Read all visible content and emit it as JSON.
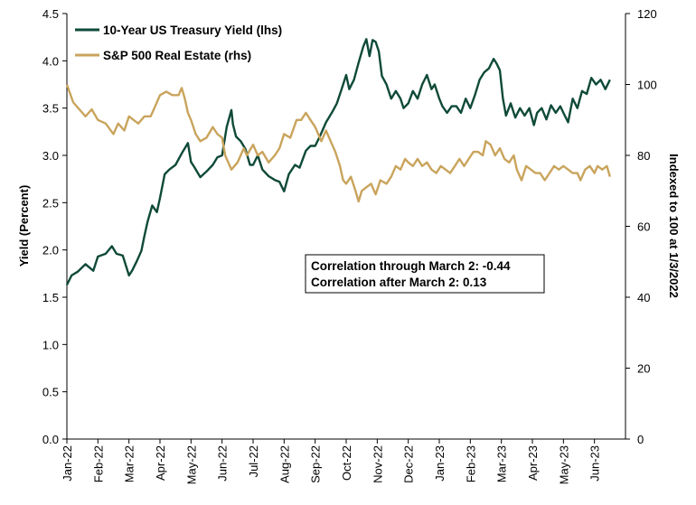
{
  "chart_data": {
    "type": "line",
    "x_tick_labels": [
      "Jan-22",
      "Feb-22",
      "Mar-22",
      "Apr-22",
      "May-22",
      "Jun-22",
      "Jul-22",
      "Aug-22",
      "Sep-22",
      "Oct-22",
      "Nov-22",
      "Dec-22",
      "Jan-23",
      "Feb-23",
      "Mar-23",
      "Apr-23",
      "May-23",
      "Jun-23"
    ],
    "y_left": {
      "label": "Yield (Percent)",
      "min": 0,
      "max": 4.5,
      "ticks": [
        "0.0",
        "0.5",
        "1.0",
        "1.5",
        "2.0",
        "2.5",
        "3.0",
        "3.5",
        "4.0",
        "4.5"
      ]
    },
    "y_right": {
      "label": "Indexed to 100 at 1/3/2022",
      "min": 0,
      "max": 120,
      "ticks": [
        "0",
        "20",
        "40",
        "60",
        "80",
        "100",
        "120"
      ]
    },
    "grid": false,
    "legend_position": "top-left",
    "series": [
      {
        "name": "10-Year US Treasury Yield (lhs)",
        "axis": "left",
        "color": "#0f4a39",
        "points": [
          [
            0,
            1.63
          ],
          [
            0.15,
            1.73
          ],
          [
            0.35,
            1.77
          ],
          [
            0.6,
            1.85
          ],
          [
            0.85,
            1.78
          ],
          [
            1.0,
            1.93
          ],
          [
            1.25,
            1.96
          ],
          [
            1.45,
            2.04
          ],
          [
            1.6,
            1.96
          ],
          [
            1.8,
            1.94
          ],
          [
            2.0,
            1.73
          ],
          [
            2.1,
            1.78
          ],
          [
            2.25,
            1.88
          ],
          [
            2.4,
            1.99
          ],
          [
            2.5,
            2.15
          ],
          [
            2.6,
            2.3
          ],
          [
            2.75,
            2.47
          ],
          [
            2.9,
            2.4
          ],
          [
            3.0,
            2.55
          ],
          [
            3.15,
            2.8
          ],
          [
            3.3,
            2.85
          ],
          [
            3.5,
            2.9
          ],
          [
            3.7,
            3.02
          ],
          [
            3.9,
            3.13
          ],
          [
            4.0,
            2.93
          ],
          [
            4.1,
            2.88
          ],
          [
            4.3,
            2.77
          ],
          [
            4.5,
            2.83
          ],
          [
            4.7,
            2.9
          ],
          [
            4.85,
            2.98
          ],
          [
            5.0,
            3.0
          ],
          [
            5.15,
            3.3
          ],
          [
            5.3,
            3.48
          ],
          [
            5.35,
            3.33
          ],
          [
            5.45,
            3.2
          ],
          [
            5.6,
            3.15
          ],
          [
            5.75,
            3.07
          ],
          [
            5.9,
            2.9
          ],
          [
            6.0,
            2.9
          ],
          [
            6.15,
            3.0
          ],
          [
            6.3,
            2.85
          ],
          [
            6.5,
            2.78
          ],
          [
            6.7,
            2.74
          ],
          [
            6.85,
            2.72
          ],
          [
            7.0,
            2.62
          ],
          [
            7.15,
            2.8
          ],
          [
            7.35,
            2.9
          ],
          [
            7.5,
            2.87
          ],
          [
            7.7,
            3.05
          ],
          [
            7.85,
            3.1
          ],
          [
            8.0,
            3.1
          ],
          [
            8.15,
            3.2
          ],
          [
            8.35,
            3.35
          ],
          [
            8.55,
            3.46
          ],
          [
            8.7,
            3.55
          ],
          [
            8.85,
            3.7
          ],
          [
            9.0,
            3.85
          ],
          [
            9.1,
            3.7
          ],
          [
            9.25,
            3.8
          ],
          [
            9.4,
            3.98
          ],
          [
            9.55,
            4.15
          ],
          [
            9.65,
            4.23
          ],
          [
            9.75,
            4.05
          ],
          [
            9.85,
            4.22
          ],
          [
            9.95,
            4.2
          ],
          [
            10.05,
            4.1
          ],
          [
            10.15,
            3.84
          ],
          [
            10.3,
            3.75
          ],
          [
            10.45,
            3.6
          ],
          [
            10.6,
            3.68
          ],
          [
            10.75,
            3.6
          ],
          [
            10.85,
            3.5
          ],
          [
            11.0,
            3.55
          ],
          [
            11.15,
            3.68
          ],
          [
            11.3,
            3.6
          ],
          [
            11.45,
            3.75
          ],
          [
            11.6,
            3.85
          ],
          [
            11.75,
            3.7
          ],
          [
            11.85,
            3.75
          ],
          [
            12.0,
            3.6
          ],
          [
            12.1,
            3.52
          ],
          [
            12.25,
            3.45
          ],
          [
            12.4,
            3.52
          ],
          [
            12.55,
            3.52
          ],
          [
            12.7,
            3.45
          ],
          [
            12.85,
            3.6
          ],
          [
            13.0,
            3.5
          ],
          [
            13.15,
            3.64
          ],
          [
            13.3,
            3.8
          ],
          [
            13.45,
            3.88
          ],
          [
            13.6,
            3.92
          ],
          [
            13.75,
            4.02
          ],
          [
            13.85,
            3.97
          ],
          [
            13.95,
            3.9
          ],
          [
            14.05,
            3.6
          ],
          [
            14.15,
            3.42
          ],
          [
            14.3,
            3.55
          ],
          [
            14.45,
            3.4
          ],
          [
            14.6,
            3.5
          ],
          [
            14.75,
            3.42
          ],
          [
            14.9,
            3.5
          ],
          [
            15.05,
            3.32
          ],
          [
            15.15,
            3.45
          ],
          [
            15.3,
            3.5
          ],
          [
            15.45,
            3.38
          ],
          [
            15.6,
            3.53
          ],
          [
            15.75,
            3.45
          ],
          [
            15.9,
            3.52
          ],
          [
            16.0,
            3.45
          ],
          [
            16.15,
            3.35
          ],
          [
            16.3,
            3.6
          ],
          [
            16.45,
            3.5
          ],
          [
            16.6,
            3.68
          ],
          [
            16.75,
            3.65
          ],
          [
            16.9,
            3.82
          ],
          [
            17.05,
            3.75
          ],
          [
            17.2,
            3.8
          ],
          [
            17.35,
            3.7
          ],
          [
            17.5,
            3.8
          ]
        ]
      },
      {
        "name": "S&P 500 Real Estate (rhs)",
        "axis": "right",
        "color": "#c9a45c",
        "points": [
          [
            0,
            100
          ],
          [
            0.2,
            95
          ],
          [
            0.4,
            93
          ],
          [
            0.6,
            91
          ],
          [
            0.8,
            93
          ],
          [
            1.0,
            90
          ],
          [
            1.25,
            89
          ],
          [
            1.5,
            86
          ],
          [
            1.65,
            89
          ],
          [
            1.85,
            87
          ],
          [
            2.0,
            91
          ],
          [
            2.15,
            90
          ],
          [
            2.3,
            89
          ],
          [
            2.5,
            91
          ],
          [
            2.7,
            91
          ],
          [
            2.85,
            94
          ],
          [
            3.0,
            97
          ],
          [
            3.2,
            98
          ],
          [
            3.4,
            97
          ],
          [
            3.6,
            97
          ],
          [
            3.7,
            99
          ],
          [
            3.8,
            96
          ],
          [
            3.9,
            92
          ],
          [
            4.0,
            90
          ],
          [
            4.15,
            86
          ],
          [
            4.3,
            84
          ],
          [
            4.5,
            85
          ],
          [
            4.7,
            88
          ],
          [
            4.85,
            86
          ],
          [
            5.0,
            85
          ],
          [
            5.1,
            80
          ],
          [
            5.3,
            76
          ],
          [
            5.5,
            78
          ],
          [
            5.7,
            82
          ],
          [
            5.8,
            80
          ],
          [
            6.0,
            83
          ],
          [
            6.15,
            80
          ],
          [
            6.3,
            81
          ],
          [
            6.5,
            78
          ],
          [
            6.7,
            80
          ],
          [
            6.85,
            82
          ],
          [
            7.0,
            86
          ],
          [
            7.2,
            85
          ],
          [
            7.4,
            90
          ],
          [
            7.55,
            90
          ],
          [
            7.7,
            92
          ],
          [
            7.85,
            90
          ],
          [
            8.0,
            88
          ],
          [
            8.2,
            84
          ],
          [
            8.35,
            87
          ],
          [
            8.5,
            84
          ],
          [
            8.65,
            81
          ],
          [
            8.8,
            77
          ],
          [
            8.9,
            73
          ],
          [
            9.0,
            72
          ],
          [
            9.15,
            74
          ],
          [
            9.3,
            70
          ],
          [
            9.4,
            67
          ],
          [
            9.5,
            70
          ],
          [
            9.65,
            71
          ],
          [
            9.8,
            72
          ],
          [
            9.95,
            69
          ],
          [
            10.1,
            73
          ],
          [
            10.3,
            72
          ],
          [
            10.45,
            74
          ],
          [
            10.6,
            77
          ],
          [
            10.75,
            76
          ],
          [
            10.9,
            79
          ],
          [
            11.0,
            78
          ],
          [
            11.15,
            77
          ],
          [
            11.3,
            79
          ],
          [
            11.45,
            77
          ],
          [
            11.6,
            78
          ],
          [
            11.75,
            76
          ],
          [
            11.9,
            75
          ],
          [
            12.05,
            77
          ],
          [
            12.2,
            76
          ],
          [
            12.35,
            75
          ],
          [
            12.5,
            77
          ],
          [
            12.65,
            79
          ],
          [
            12.8,
            77
          ],
          [
            12.95,
            79
          ],
          [
            13.1,
            81
          ],
          [
            13.25,
            81
          ],
          [
            13.4,
            80
          ],
          [
            13.5,
            84
          ],
          [
            13.65,
            83
          ],
          [
            13.8,
            80
          ],
          [
            13.95,
            82
          ],
          [
            14.1,
            79
          ],
          [
            14.25,
            78
          ],
          [
            14.4,
            80
          ],
          [
            14.5,
            76
          ],
          [
            14.65,
            73
          ],
          [
            14.8,
            77
          ],
          [
            14.95,
            76
          ],
          [
            15.1,
            75
          ],
          [
            15.25,
            75
          ],
          [
            15.4,
            73
          ],
          [
            15.55,
            75
          ],
          [
            15.7,
            77
          ],
          [
            15.85,
            76
          ],
          [
            16.0,
            77
          ],
          [
            16.15,
            76
          ],
          [
            16.3,
            75
          ],
          [
            16.45,
            75
          ],
          [
            16.55,
            73
          ],
          [
            16.7,
            76
          ],
          [
            16.85,
            77
          ],
          [
            17.0,
            75
          ],
          [
            17.1,
            77
          ],
          [
            17.25,
            76
          ],
          [
            17.4,
            77
          ],
          [
            17.5,
            74
          ]
        ]
      }
    ],
    "annotations": [
      "Correlation through March 2: -0.44",
      "Correlation after March 2: 0.13"
    ]
  }
}
